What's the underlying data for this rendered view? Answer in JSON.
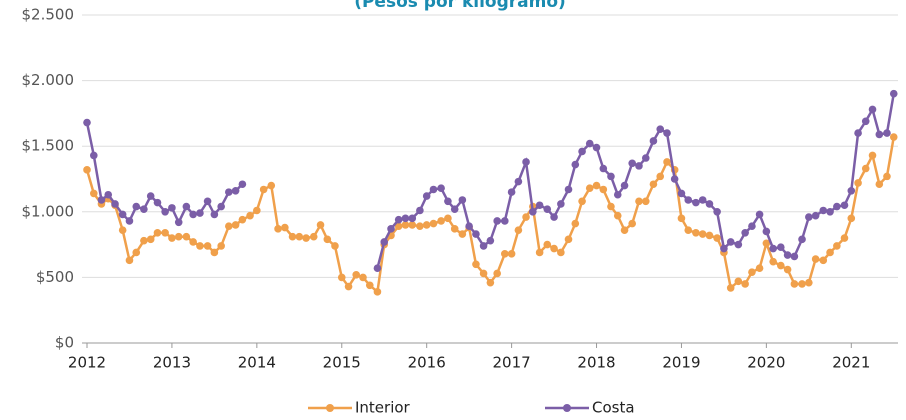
{
  "chart_data": {
    "type": "line",
    "subtitle": "(Pesos por kilogramo)",
    "x": [
      2012,
      2012.08,
      2012.17,
      2012.25,
      2012.33,
      2012.42,
      2012.5,
      2012.58,
      2012.67,
      2012.75,
      2012.83,
      2012.92,
      2013,
      2013.08,
      2013.17,
      2013.25,
      2013.33,
      2013.42,
      2013.5,
      2013.58,
      2013.67,
      2013.75,
      2013.83,
      2013.92,
      2014,
      2014.08,
      2014.17,
      2014.25,
      2014.33,
      2014.42,
      2014.5,
      2014.58,
      2014.67,
      2014.75,
      2014.83,
      2014.92,
      2015,
      2015.08,
      2015.17,
      2015.25,
      2015.33,
      2015.42,
      2015.5,
      2015.58,
      2015.67,
      2015.75,
      2015.83,
      2015.92,
      2016,
      2016.08,
      2016.17,
      2016.25,
      2016.33,
      2016.42,
      2016.5,
      2016.58,
      2016.67,
      2016.75,
      2016.83,
      2016.92,
      2017,
      2017.08,
      2017.17,
      2017.25,
      2017.33,
      2017.42,
      2017.5,
      2017.58,
      2017.67,
      2017.75,
      2017.83,
      2017.92,
      2018,
      2018.08,
      2018.17,
      2018.25,
      2018.33,
      2018.42,
      2018.5,
      2018.58,
      2018.67,
      2018.75,
      2018.83,
      2018.92,
      2019,
      2019.08,
      2019.17,
      2019.25,
      2019.33,
      2019.42,
      2019.5,
      2019.58,
      2019.67,
      2019.75,
      2019.83,
      2019.92,
      2020,
      2020.08,
      2020.17,
      2020.25,
      2020.33,
      2020.42,
      2020.5,
      2020.58,
      2020.67,
      2020.75,
      2020.83,
      2020.92,
      2021,
      2021.08,
      2021.17,
      2021.25,
      2021.33,
      2021.42,
      2021.5
    ],
    "series": [
      {
        "name": "Interior",
        "color": "#f0a04b",
        "values": [
          1320,
          1140,
          1060,
          1100,
          1050,
          860,
          630,
          690,
          780,
          790,
          840,
          840,
          800,
          810,
          810,
          770,
          740,
          740,
          690,
          740,
          890,
          900,
          940,
          970,
          1010,
          1170,
          1200,
          870,
          880,
          810,
          810,
          800,
          810,
          900,
          790,
          740,
          500,
          430,
          520,
          500,
          440,
          390,
          750,
          820,
          890,
          900,
          900,
          890,
          900,
          910,
          930,
          950,
          870,
          830,
          880,
          600,
          530,
          460,
          530,
          680,
          680,
          860,
          960,
          1040,
          690,
          750,
          720,
          690,
          790,
          910,
          1080,
          1180,
          1200,
          1170,
          1040,
          970,
          860,
          910,
          1080,
          1080,
          1210,
          1270,
          1380,
          1320,
          950,
          860,
          840,
          830,
          820,
          800,
          690,
          420,
          470,
          450,
          540,
          570,
          760,
          620,
          590,
          560,
          450,
          450,
          460,
          640,
          630,
          690,
          740,
          800,
          950,
          1220,
          1330,
          1430,
          1210,
          1270,
          1570
        ]
      },
      {
        "name": "Costa",
        "color": "#7b5ea7",
        "values": [
          1680,
          1430,
          1090,
          1130,
          1060,
          980,
          930,
          1040,
          1020,
          1120,
          1070,
          1000,
          1030,
          920,
          1040,
          980,
          990,
          1080,
          980,
          1040,
          1150,
          1160,
          1210,
          null,
          null,
          null,
          null,
          null,
          null,
          null,
          null,
          null,
          null,
          null,
          null,
          null,
          null,
          null,
          null,
          null,
          null,
          570,
          770,
          870,
          940,
          950,
          950,
          1010,
          1120,
          1170,
          1180,
          1080,
          1020,
          1090,
          890,
          830,
          740,
          780,
          930,
          930,
          1150,
          1230,
          1380,
          1000,
          1050,
          1020,
          960,
          1060,
          1170,
          1360,
          1460,
          1520,
          1490,
          1330,
          1270,
          1130,
          1200,
          1370,
          1350,
          1410,
          1540,
          1630,
          1600,
          1250,
          1140,
          1090,
          1070,
          1090,
          1060,
          1000,
          720,
          770,
          750,
          840,
          890,
          980,
          850,
          720,
          730,
          670,
          660,
          790,
          960,
          970,
          1010,
          1000,
          1040,
          1050,
          1160,
          1600,
          1690,
          1780,
          1590,
          1600,
          1900
        ]
      }
    ],
    "xlim": [
      2012,
      2021.55
    ],
    "xticks": [
      2012,
      2013,
      2014,
      2015,
      2016,
      2017,
      2018,
      2019,
      2020,
      2021
    ],
    "ylim": [
      0,
      2500
    ],
    "yticks": [
      {
        "value": 0,
        "label": "$0"
      },
      {
        "value": 500,
        "label": "$500"
      },
      {
        "value": 1000,
        "label": "$1.000"
      },
      {
        "value": 1500,
        "label": "$1.500"
      },
      {
        "value": 2000,
        "label": "$2.000"
      },
      {
        "value": 2500,
        "label": "$2.500"
      }
    ],
    "grid": true,
    "legend": "bottom"
  }
}
